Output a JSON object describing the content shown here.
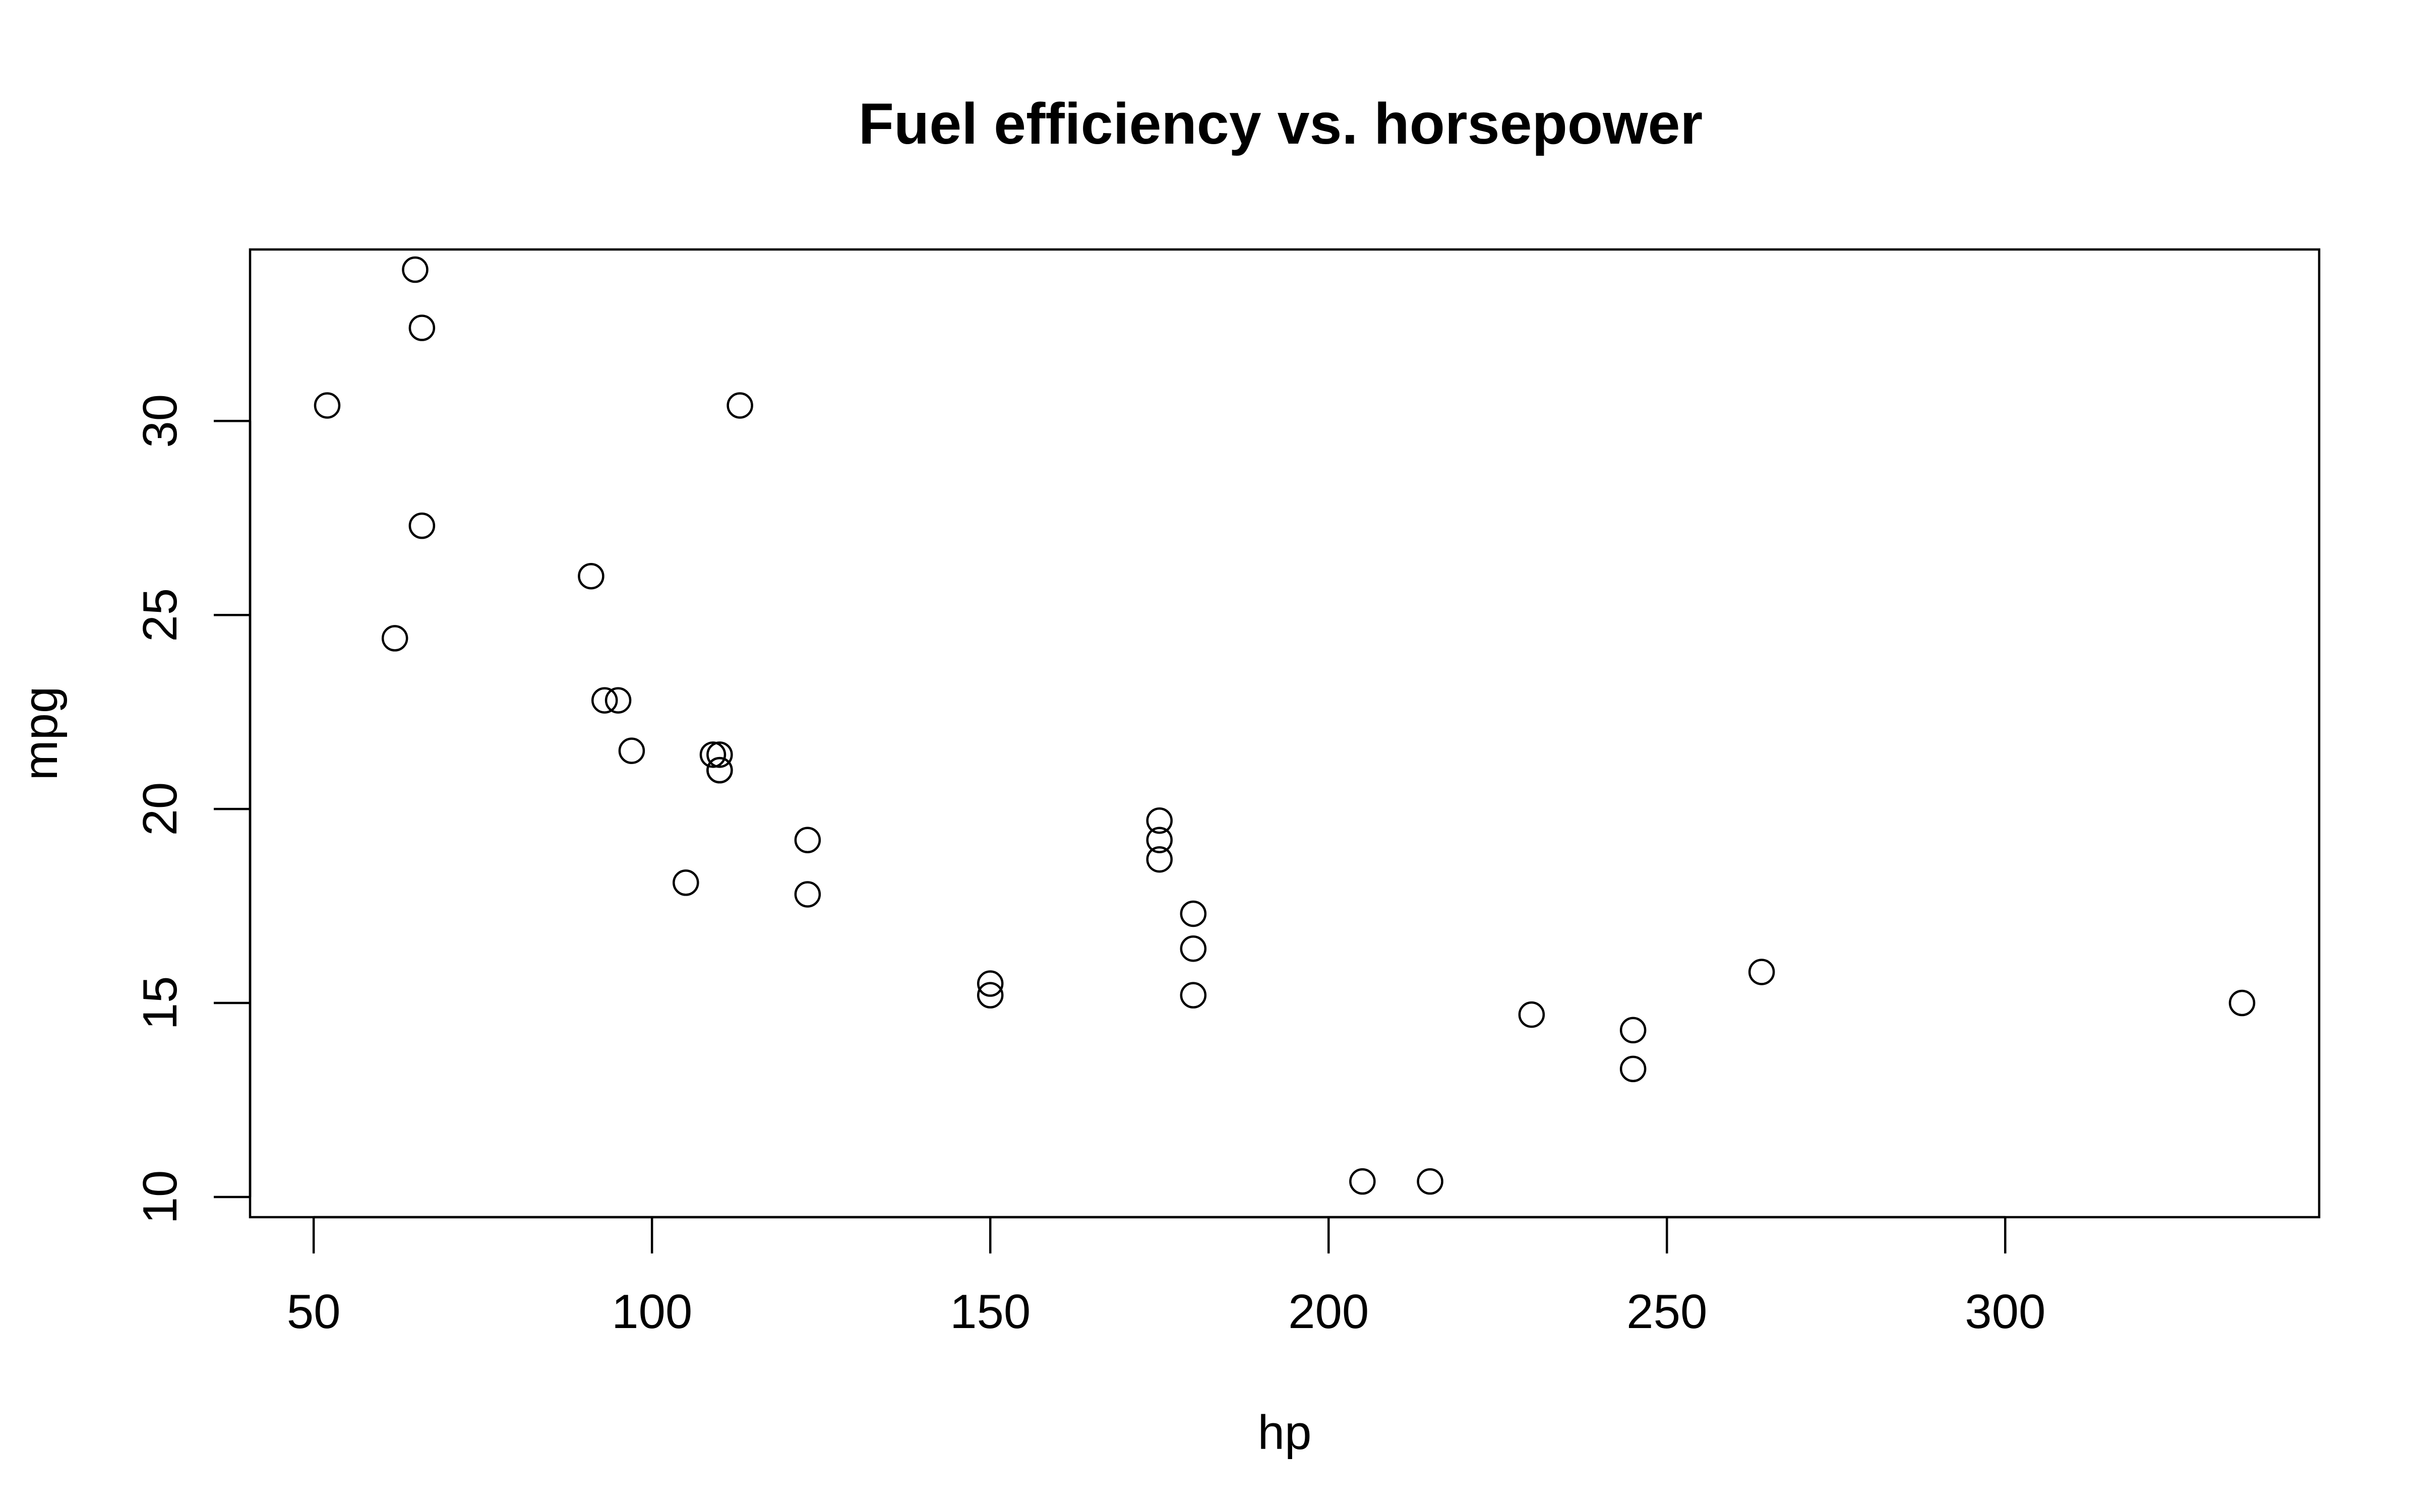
{
  "chart_data": {
    "type": "scatter",
    "title": "Fuel efficiency vs. horsepower",
    "xlabel": "hp",
    "ylabel": "mpg",
    "xlim": [
      40.6,
      346.4
    ],
    "ylim": [
      9.48,
      34.42
    ],
    "x_ticks": [
      50,
      100,
      150,
      200,
      250,
      300
    ],
    "y_ticks": [
      10,
      15,
      20,
      25,
      30
    ],
    "marker": "open-circle",
    "grid": false,
    "legend": false,
    "colors": {
      "points": "#000000",
      "frame": "#000000",
      "background": "#ffffff"
    },
    "series": [
      {
        "x": [
          110,
          110,
          93,
          110,
          175,
          105,
          245,
          62,
          95,
          123,
          123,
          180,
          180,
          180,
          205,
          215,
          230,
          66,
          52,
          65,
          97,
          150,
          150,
          245,
          175,
          66,
          91,
          113,
          264,
          175,
          335,
          109
        ],
        "y": [
          21.0,
          21.0,
          22.8,
          21.4,
          18.7,
          18.1,
          14.3,
          24.4,
          22.8,
          19.2,
          17.8,
          16.4,
          17.3,
          15.2,
          10.4,
          10.4,
          14.7,
          32.4,
          30.4,
          33.9,
          21.5,
          15.5,
          15.2,
          13.3,
          19.2,
          27.3,
          26.0,
          30.4,
          15.8,
          19.7,
          15.0,
          21.4
        ]
      }
    ]
  }
}
